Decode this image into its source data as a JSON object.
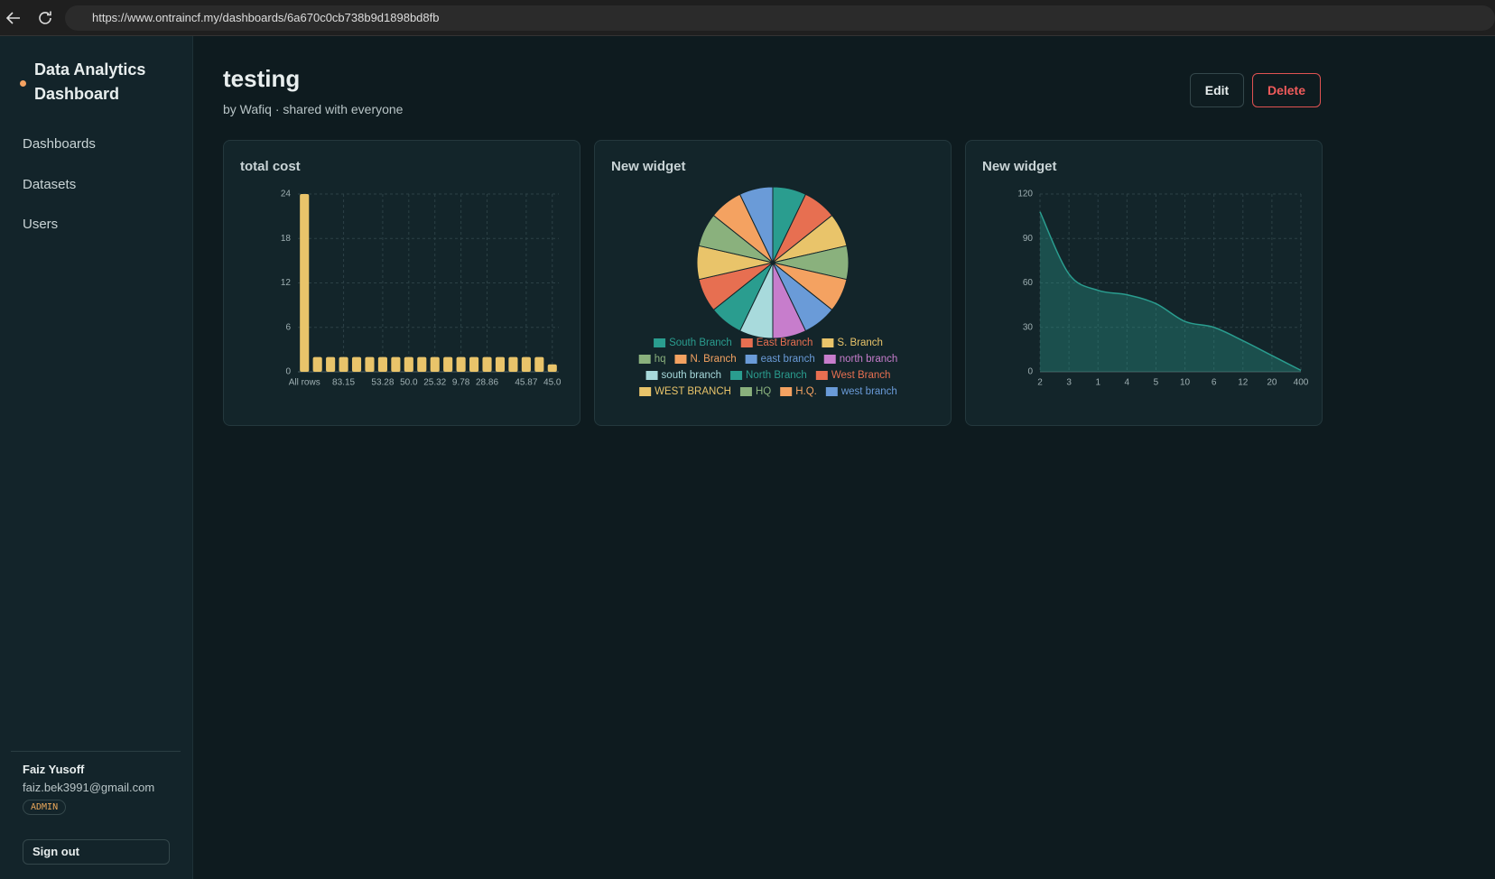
{
  "browser": {
    "url": "https://www.ontraincf.my/dashboards/6a670c0cb738b9d1898bd8fb"
  },
  "sidebar": {
    "brand": "Data Analytics Dashboard",
    "nav": [
      "Dashboards",
      "Datasets",
      "Users"
    ],
    "user": {
      "name": "Faiz Yusoff",
      "email": "faiz.bek3991@gmail.com",
      "role": "ADMIN"
    },
    "signout": "Sign out"
  },
  "header": {
    "title": "testing",
    "subtitle": "by Wafiq · shared with everyone",
    "edit": "Edit",
    "delete": "Delete"
  },
  "chart_data": [
    {
      "type": "bar",
      "title": "total cost",
      "color": "#e9c46a",
      "grid": true,
      "categories": [
        "All rows",
        null,
        null,
        "83.15",
        null,
        null,
        "53.28",
        null,
        "50.0",
        null,
        "25.32",
        null,
        "9.78",
        null,
        "28.86",
        null,
        null,
        "45.87",
        null,
        "45.0"
      ],
      "values": [
        24,
        2,
        2,
        2,
        2,
        2,
        2,
        2,
        2,
        2,
        2,
        2,
        2,
        2,
        2,
        2,
        2,
        2,
        2,
        1
      ],
      "ylim": [
        0,
        24
      ],
      "yticks": [
        0,
        6,
        12,
        18,
        24
      ]
    },
    {
      "type": "pie",
      "title": "New widget",
      "categories": [
        "South Branch",
        "East Branch",
        "S. Branch",
        "hq",
        "N. Branch",
        "east branch",
        "north branch",
        "south branch",
        "North Branch",
        "West Branch",
        "WEST BRANCH",
        "HQ",
        "H.Q.",
        "west branch"
      ],
      "values": [
        1,
        1,
        1,
        1,
        1,
        1,
        1,
        1,
        1,
        1,
        1,
        1,
        1,
        1
      ],
      "colors": [
        "#2a9d8f",
        "#e76f51",
        "#e9c46a",
        "#8ab17d",
        "#f4a261",
        "#6a9bd8",
        "#c77dcc",
        "#a8dadc",
        "#2a9d8f",
        "#e76f51",
        "#e9c46a",
        "#8ab17d",
        "#f4a261",
        "#6a9bd8"
      ]
    },
    {
      "type": "line",
      "title": "New widget",
      "color": "#2a9d8f",
      "grid": true,
      "categories": [
        "2",
        "3",
        "1",
        "4",
        "5",
        "10",
        "6",
        "12",
        "20",
        "400"
      ],
      "values": [
        108,
        66,
        55,
        52,
        46,
        34,
        30,
        21,
        11,
        1
      ],
      "ylim": [
        0,
        120
      ],
      "yticks": [
        0,
        30,
        60,
        90,
        120
      ]
    }
  ]
}
